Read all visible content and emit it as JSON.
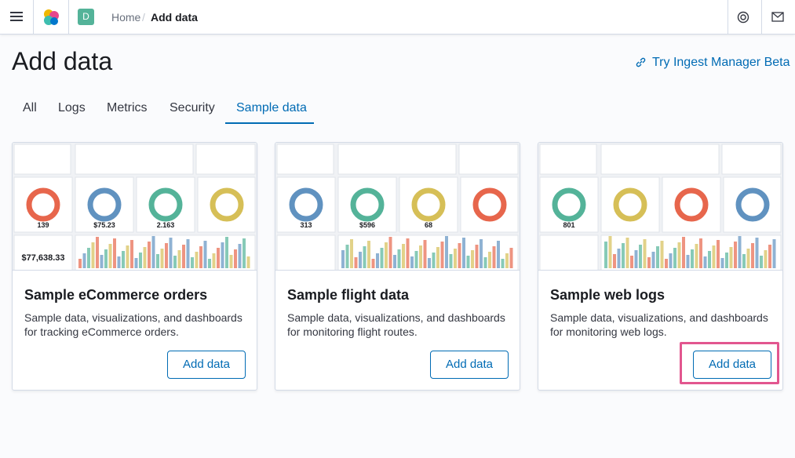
{
  "header": {
    "breadcrumbs": [
      "Home",
      "Add data"
    ],
    "avatar": "D"
  },
  "page": {
    "title": "Add data",
    "link": "Try Ingest Manager Beta"
  },
  "tabs": [
    "All",
    "Logs",
    "Metrics",
    "Security",
    "Sample data"
  ],
  "cards": [
    {
      "title": "Sample eCommerce orders",
      "description": "Sample data, visualizations, and dashboards for tracking eCommerce orders.",
      "button": "Add data",
      "preview": [
        "139",
        "$75.23",
        "2.163",
        "$77,638.33"
      ]
    },
    {
      "title": "Sample flight data",
      "description": "Sample data, visualizations, and dashboards for monitoring flight routes.",
      "button": "Add data",
      "preview": [
        "313",
        "$596",
        "68"
      ]
    },
    {
      "title": "Sample web logs",
      "description": "Sample data, visualizations, and dashboards for monitoring web logs.",
      "button": "Add data",
      "preview": [
        "801"
      ]
    }
  ]
}
